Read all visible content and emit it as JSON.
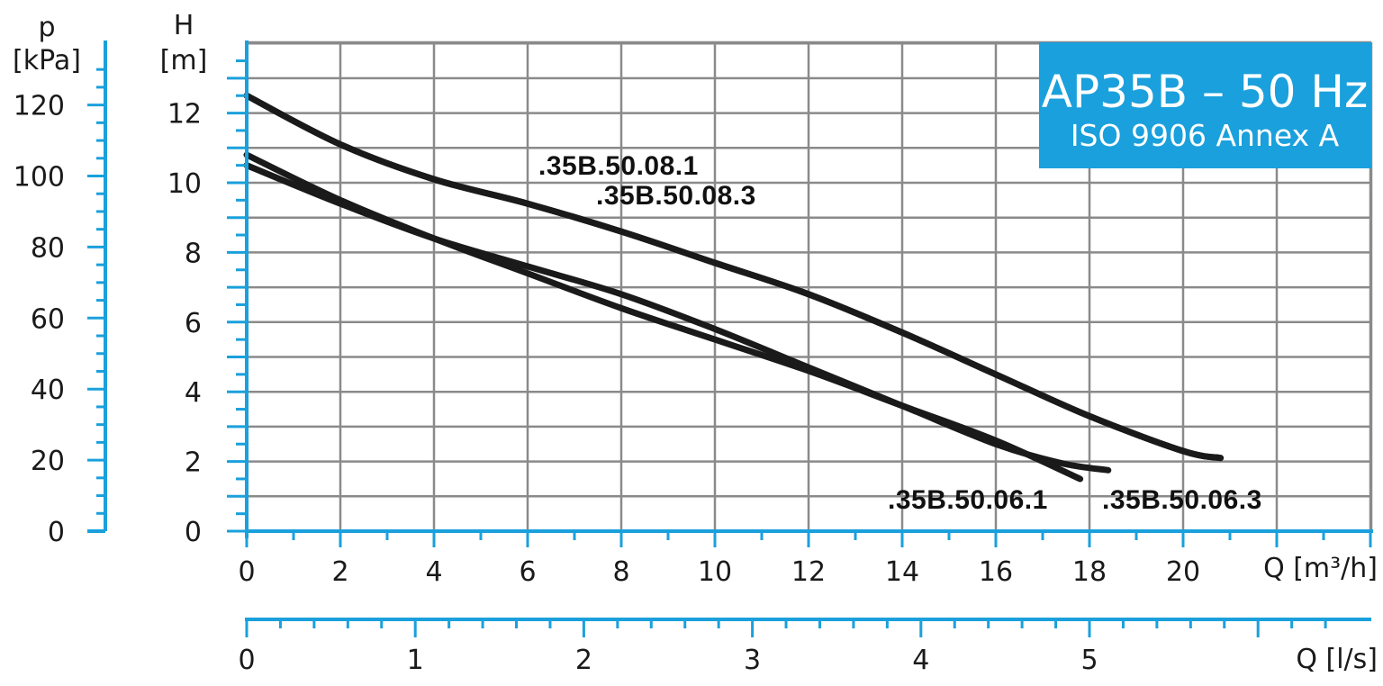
{
  "chart_data": {
    "type": "line",
    "title": "AP35B – 50 Hz",
    "subtitle": "ISO 9906 Annex A",
    "y_axis": {
      "label": "H",
      "unit": "[m]",
      "ticks": [
        "0",
        "2",
        "4",
        "6",
        "8",
        "10",
        "12"
      ],
      "ylim": [
        0,
        14
      ]
    },
    "y2_axis": {
      "label": "p",
      "unit": "[kPa]",
      "ticks": [
        "0",
        "20",
        "40",
        "60",
        "80",
        "100",
        "120"
      ]
    },
    "x_axis": {
      "label": "Q [m³/h]",
      "ticks": [
        "0",
        "2",
        "4",
        "6",
        "8",
        "10",
        "12",
        "14",
        "16",
        "18",
        "20"
      ],
      "xlim": [
        0,
        24
      ]
    },
    "x2_axis": {
      "label": "Q [l/s]",
      "ticks": [
        "0",
        "1",
        "2",
        "3",
        "4",
        "5"
      ]
    },
    "grid": true,
    "series": [
      {
        "name": ".35B.50.08.1",
        "x": [
          0,
          2,
          4,
          6,
          8,
          10,
          12,
          14,
          16,
          18,
          20,
          20.8
        ],
        "y": [
          12.5,
          11.1,
          10.1,
          9.4,
          8.6,
          7.7,
          6.8,
          5.7,
          4.5,
          3.3,
          2.3,
          2.1
        ]
      },
      {
        "name": ".35B.50.08.3",
        "x": [
          0,
          2,
          4,
          6,
          8,
          10,
          12,
          14,
          16,
          18,
          20,
          20.8
        ],
        "y": [
          12.5,
          11.1,
          10.1,
          9.4,
          8.6,
          7.7,
          6.8,
          5.7,
          4.5,
          3.3,
          2.3,
          2.1
        ]
      },
      {
        "name": ".35B.50.06.1",
        "x": [
          0,
          2,
          4,
          6,
          8,
          10,
          12,
          14,
          16,
          17.8
        ],
        "y": [
          10.8,
          9.5,
          8.4,
          7.4,
          6.4,
          5.5,
          4.6,
          3.6,
          2.6,
          1.5
        ]
      },
      {
        "name": ".35B.50.06.3",
        "x": [
          0,
          2,
          4,
          6,
          8,
          10,
          12,
          14,
          16,
          17.4,
          18.4
        ],
        "y": [
          10.5,
          9.4,
          8.4,
          7.6,
          6.8,
          5.8,
          4.7,
          3.6,
          2.5,
          1.95,
          1.75
        ]
      }
    ]
  }
}
